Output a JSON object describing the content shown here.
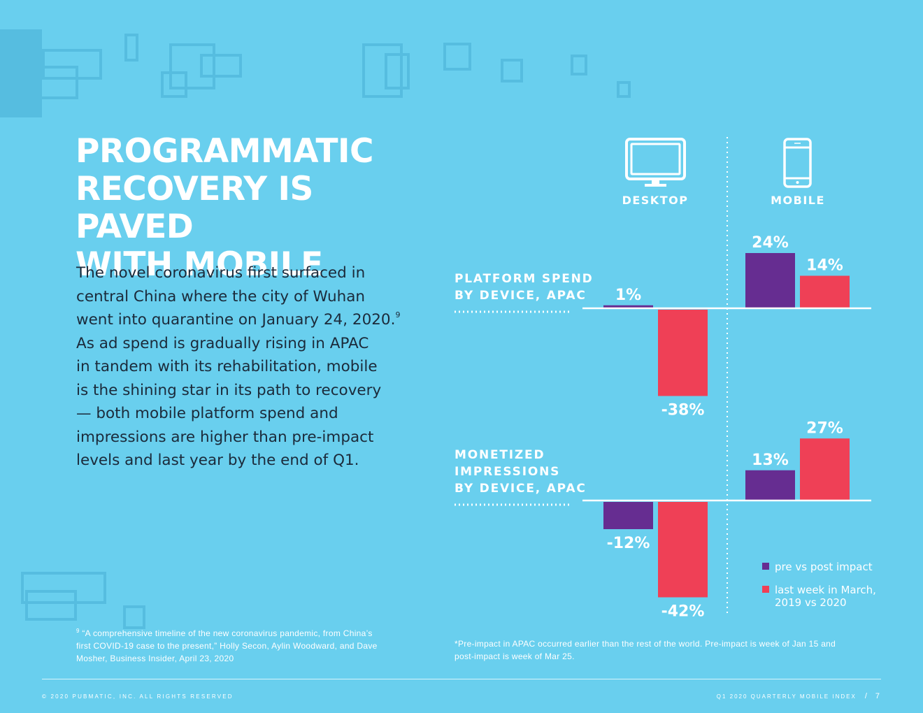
{
  "title": {
    "lines": [
      "PROGRAMMATIC",
      "RECOVERY IS PAVED",
      "WITH MOBILE"
    ]
  },
  "body": {
    "lines": [
      "The novel coronavirus first surfaced in",
      "central China where the city of Wuhan",
      "went into quarantine on January 24, 2020.",
      "As ad spend is gradually rising in APAC",
      "in tandem with its rehabilitation, mobile",
      "is the shining star in its path to recovery",
      "— both mobile platform spend and",
      "impressions are higher than pre-impact",
      "levels and last year by the end of Q1."
    ],
    "footnote_ref": "9"
  },
  "footnote_left": {
    "marker": "9",
    "lines": [
      "“A comprehensive timeline of the new coronavirus pandemic, from China’s",
      "first COVID-19 case to the present,” Holly Secon, Aylin Woodward, and Dave",
      "Mosher, Business Insider, April 23, 2020"
    ]
  },
  "footnote_right": {
    "lines": [
      "*Pre-impact in APAC occurred earlier than the rest of the world. Pre-impact is week of Jan 15 and",
      "post-impact is week of Mar 25."
    ]
  },
  "footer": {
    "copyright": "© 2020 PUBMATIC, INC. ALL RIGHTS RESERVED",
    "report": "Q1 2020 QUARTERLY MOBILE INDEX",
    "separator": "/",
    "page": "7"
  },
  "colors": {
    "background": "#69cfee",
    "pre_vs_post": "#662d91",
    "last_week": "#ef4056",
    "white": "#ffffff",
    "body_text": "#1b2a3a"
  },
  "chart_data": {
    "type": "bar",
    "categories": [
      "DESKTOP",
      "MOBILE"
    ],
    "category_icons": [
      "desktop-monitor-icon",
      "mobile-phone-icon"
    ],
    "legend": [
      {
        "name": "pre vs post impact",
        "color": "#662d91"
      },
      {
        "name": "last week in March, 2019 vs 2020",
        "color": "#ef4056"
      }
    ],
    "legend_position": "bottom-right",
    "panels": [
      {
        "title_lines": [
          "PLATFORM SPEND",
          "BY DEVICE, APAC"
        ],
        "series": [
          {
            "name": "pre vs post impact",
            "values": [
              1,
              24
            ],
            "labels": [
              "1%",
              "24%"
            ]
          },
          {
            "name": "last week in March, 2019 vs 2020",
            "values": [
              -38,
              14
            ],
            "labels": [
              "-38%",
              "14%"
            ]
          }
        ]
      },
      {
        "title_lines": [
          "MONETIZED",
          "IMPRESSIONS",
          "BY DEVICE, APAC"
        ],
        "series": [
          {
            "name": "pre vs post impact",
            "values": [
              -12,
              13
            ],
            "labels": [
              "-12%",
              "13%"
            ]
          },
          {
            "name": "last week in March, 2019 vs 2020",
            "values": [
              -42,
              27
            ],
            "labels": [
              "-42%",
              "27%"
            ]
          }
        ]
      }
    ]
  }
}
